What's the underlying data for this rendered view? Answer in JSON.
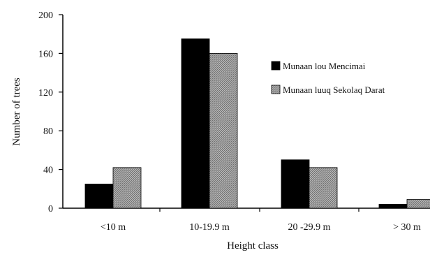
{
  "chart_data": {
    "type": "bar",
    "title": "",
    "xlabel": "Height class",
    "ylabel": "Number of trees",
    "categories": [
      "<10 m",
      "10-19.9 m",
      "20 -29.9 m",
      "> 30 m"
    ],
    "series": [
      {
        "name": "Munaan lou Mencimai",
        "values": [
          25,
          175,
          50,
          4
        ],
        "color": "#000000",
        "pattern": "solid"
      },
      {
        "name": "Munaan luuq Sekolaq Darat",
        "values": [
          42,
          160,
          42,
          9
        ],
        "color": "#9a9a9a",
        "pattern": "hatched"
      }
    ],
    "ylim": [
      0,
      200
    ],
    "yticks": [
      0,
      40,
      80,
      120,
      160,
      200
    ],
    "grid": false,
    "legend_position": "right"
  }
}
